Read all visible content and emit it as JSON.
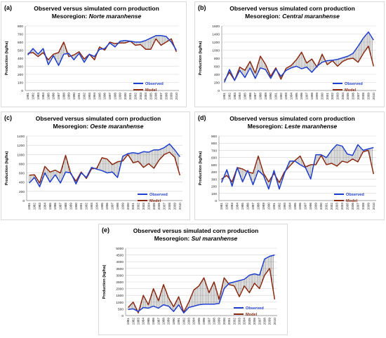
{
  "colors": {
    "observed": "#1f3fcf",
    "model": "#8b2a12",
    "grid": "#d3d3d3",
    "hatch": "#222222",
    "axis": "#888888"
  },
  "chart_data": [
    {
      "type": "line",
      "panel": "(a)",
      "title": "Observed versus simulated corn production",
      "subtitle_prefix": "Mesoregion: ",
      "subtitle_region": "Norte maranhense",
      "ylabel": "Production (kg/ha)",
      "ylim": [
        0,
        800
      ],
      "yticks": [
        0,
        100,
        200,
        300,
        400,
        500,
        600,
        700,
        800
      ],
      "x": [
        1981,
        1982,
        1983,
        1984,
        1985,
        1986,
        1987,
        1988,
        1989,
        1990,
        1991,
        1992,
        1993,
        1994,
        1995,
        1996,
        1997,
        1998,
        1999,
        2000,
        2001,
        2002,
        2003,
        2004,
        2005,
        2006,
        2007,
        2008,
        2009,
        2010
      ],
      "series": [
        {
          "name": "Observed",
          "values": [
            440,
            520,
            450,
            520,
            320,
            430,
            310,
            450,
            460,
            380,
            460,
            350,
            450,
            420,
            510,
            520,
            590,
            540,
            610,
            620,
            610,
            600,
            600,
            620,
            650,
            680,
            680,
            670,
            600,
            500
          ]
        },
        {
          "name": "Model",
          "values": [
            460,
            470,
            420,
            470,
            380,
            450,
            470,
            600,
            420,
            440,
            480,
            390,
            450,
            380,
            540,
            500,
            600,
            580,
            590,
            590,
            610,
            560,
            570,
            510,
            510,
            640,
            560,
            600,
            640,
            480
          ]
        }
      ],
      "legend_position": "bottom-right"
    },
    {
      "type": "line",
      "panel": "(b)",
      "title": "Observed versus simulated corn production",
      "subtitle_prefix": "Mesoregion: ",
      "subtitle_region": "Central maranhense",
      "ylabel": "Production (kg/ha)",
      "ylim": [
        0,
        1600
      ],
      "yticks": [
        0,
        200,
        400,
        600,
        800,
        1000,
        1200,
        1400,
        1600
      ],
      "x": [
        1981,
        1982,
        1983,
        1984,
        1985,
        1986,
        1987,
        1988,
        1989,
        1990,
        1991,
        1992,
        1993,
        1994,
        1995,
        1996,
        1997,
        1998,
        1999,
        2000,
        2001,
        2002,
        2003,
        2004,
        2005,
        2006,
        2007,
        2008,
        2009,
        2010
      ],
      "series": [
        {
          "name": "Observed",
          "values": [
            200,
            520,
            250,
            500,
            320,
            560,
            300,
            560,
            520,
            300,
            530,
            350,
            500,
            560,
            600,
            540,
            580,
            450,
            600,
            700,
            740,
            750,
            770,
            810,
            850,
            920,
            1100,
            1300,
            1450,
            1250
          ]
        },
        {
          "name": "Model",
          "values": [
            250,
            450,
            250,
            580,
            500,
            720,
            430,
            850,
            650,
            350,
            560,
            280,
            550,
            620,
            760,
            950,
            680,
            780,
            580,
            900,
            640,
            740,
            600,
            720,
            780,
            800,
            700,
            920,
            1100,
            600
          ]
        }
      ],
      "legend_position": "bottom-right"
    },
    {
      "type": "line",
      "panel": "(c)",
      "title": "Observed versus simulated corn production",
      "subtitle_prefix": "Mesoregion: ",
      "subtitle_region": "Oeste maranhense",
      "ylabel": "Production (kg/ha)",
      "ylim": [
        0,
        1400
      ],
      "yticks": [
        0,
        200,
        400,
        600,
        800,
        1000,
        1200,
        1400
      ],
      "x": [
        1981,
        1982,
        1983,
        1984,
        1985,
        1986,
        1987,
        1988,
        1989,
        1990,
        1991,
        1992,
        1993,
        1994,
        1995,
        1996,
        1997,
        1998,
        1999,
        2000,
        2001,
        2002,
        2003,
        2004,
        2005,
        2006,
        2007,
        2008,
        2009,
        2010
      ],
      "series": [
        {
          "name": "Observed",
          "values": [
            380,
            500,
            300,
            600,
            400,
            560,
            380,
            620,
            600,
            360,
            600,
            500,
            720,
            680,
            650,
            600,
            620,
            500,
            960,
            1020,
            1040,
            1020,
            1060,
            1050,
            1100,
            1100,
            1150,
            1230,
            1100,
            950
          ]
        },
        {
          "name": "Model",
          "values": [
            550,
            560,
            380,
            740,
            620,
            660,
            600,
            980,
            580,
            420,
            620,
            480,
            690,
            700,
            930,
            900,
            780,
            840,
            860,
            1000,
            820,
            850,
            720,
            800,
            700,
            880,
            1000,
            1050,
            940,
            550
          ]
        }
      ],
      "legend_position": "bottom-right"
    },
    {
      "type": "line",
      "panel": "(d)",
      "title": "Observed versus simulated corn production",
      "subtitle_prefix": "Mesoregion: ",
      "subtitle_region": "Leste maranhense",
      "ylabel": "Production (kg/ha)",
      "ylim": [
        0,
        900
      ],
      "yticks": [
        0,
        100,
        200,
        300,
        400,
        500,
        600,
        700,
        800,
        900
      ],
      "x": [
        1981,
        1982,
        1983,
        1984,
        1985,
        1986,
        1987,
        1988,
        1989,
        1990,
        1991,
        1992,
        1993,
        1994,
        1995,
        1996,
        1997,
        1998,
        1999,
        2000,
        2001,
        2002,
        2003,
        2004,
        2005,
        2006,
        2007,
        2008,
        2009,
        2010
      ],
      "series": [
        {
          "name": "Observed",
          "values": [
            250,
            430,
            200,
            460,
            260,
            420,
            220,
            420,
            350,
            160,
            420,
            160,
            380,
            550,
            550,
            500,
            460,
            300,
            640,
            640,
            600,
            700,
            780,
            760,
            650,
            630,
            780,
            700,
            720,
            740
          ]
        },
        {
          "name": "Model",
          "values": [
            300,
            350,
            260,
            460,
            440,
            400,
            380,
            620,
            380,
            260,
            380,
            250,
            400,
            480,
            560,
            620,
            470,
            500,
            500,
            630,
            500,
            520,
            480,
            550,
            530,
            580,
            540,
            680,
            700,
            370
          ]
        }
      ],
      "legend_position": "bottom-right"
    },
    {
      "type": "line",
      "panel": "(e)",
      "title": "Observed versus simulated corn production",
      "subtitle_prefix": "Mesoregion: ",
      "subtitle_region": "Sul maranhense",
      "ylabel": "Production (kg/ha)",
      "ylim": [
        0,
        5000
      ],
      "yticks": [
        0,
        500,
        1000,
        1500,
        2000,
        2500,
        3000,
        3500,
        4000,
        4500,
        5000
      ],
      "x": [
        1981,
        1982,
        1983,
        1984,
        1985,
        1986,
        1987,
        1988,
        1989,
        1990,
        1991,
        1992,
        1993,
        1994,
        1995,
        1996,
        1997,
        1998,
        1999,
        2000,
        2001,
        2002,
        2003,
        2004,
        2005,
        2006,
        2007,
        2008,
        2009,
        2010
      ],
      "series": [
        {
          "name": "Observed",
          "values": [
            450,
            500,
            300,
            600,
            550,
            700,
            550,
            800,
            700,
            300,
            800,
            200,
            600,
            700,
            800,
            850,
            850,
            850,
            900,
            2000,
            2400,
            2500,
            2600,
            2700,
            3000,
            3100,
            3000,
            4200,
            4400,
            4500
          ]
        },
        {
          "name": "Model",
          "values": [
            600,
            1000,
            200,
            1500,
            800,
            2000,
            1100,
            2300,
            1300,
            650,
            1400,
            250,
            1000,
            1900,
            2200,
            2800,
            1700,
            2500,
            1200,
            2800,
            2300,
            2200,
            1400,
            2200,
            1700,
            2400,
            2000,
            3000,
            3500,
            1200
          ]
        }
      ],
      "legend_position": "bottom-right"
    }
  ]
}
